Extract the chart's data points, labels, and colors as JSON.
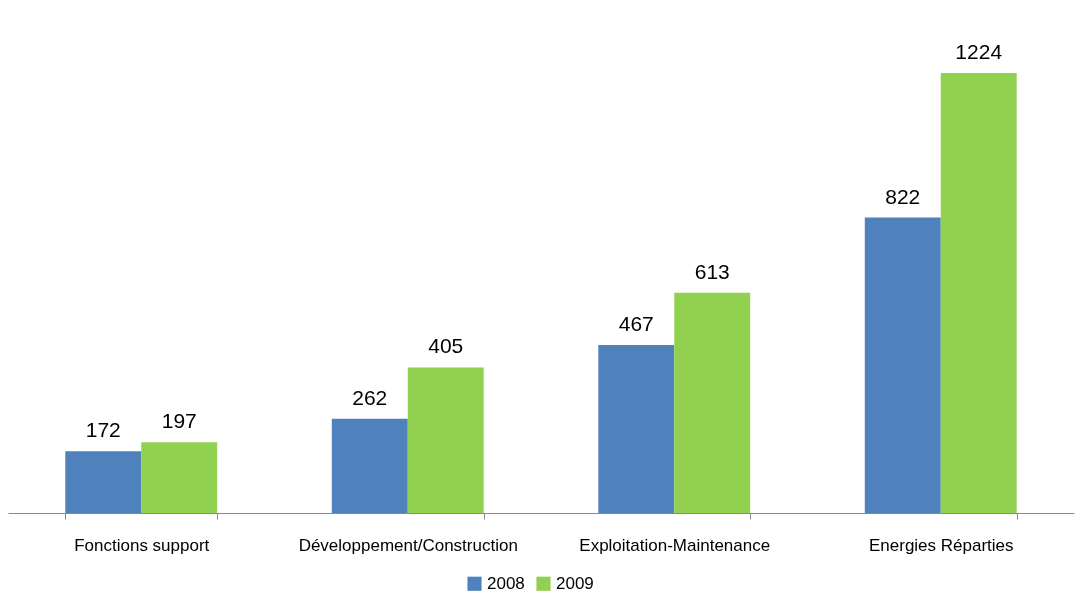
{
  "chart_data": {
    "type": "bar",
    "categories": [
      "Fonctions support",
      "Développement/Construction",
      "Exploitation-Maintenance",
      "Energies Réparties"
    ],
    "series": [
      {
        "name": "2008",
        "color": "#4f81bd",
        "values": [
          172,
          262,
          467,
          822
        ]
      },
      {
        "name": "2009",
        "color": "#92d050",
        "values": [
          197,
          405,
          613,
          1224
        ]
      }
    ],
    "data_labels": true,
    "legend": "bottom",
    "grid": false
  }
}
